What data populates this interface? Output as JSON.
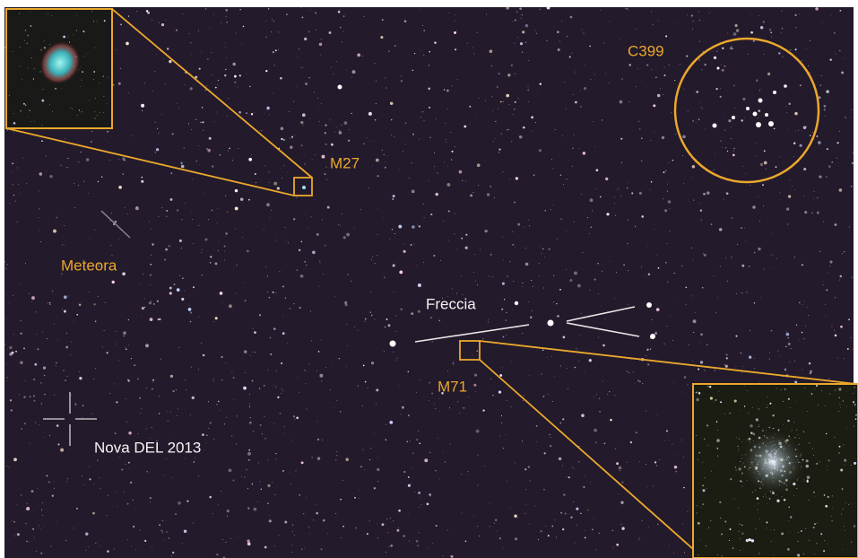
{
  "labels": {
    "c399": "C399",
    "m27": "M27",
    "meteora": "Meteora",
    "freccia": "Freccia",
    "m71": "M71",
    "nova": "Nova DEL 2013"
  }
}
